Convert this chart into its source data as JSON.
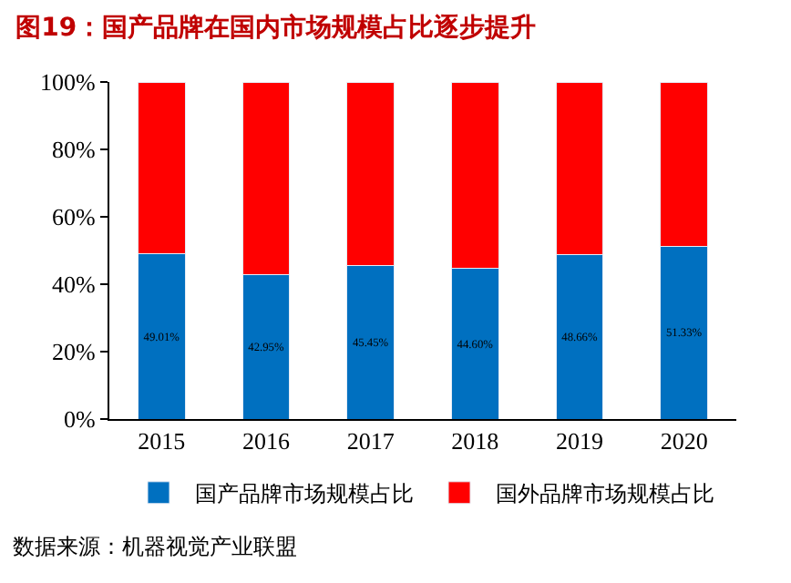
{
  "chart_data": {
    "type": "bar",
    "title": "图19：国产品牌在国内市场规模占比逐步提升",
    "categories": [
      "2015",
      "2016",
      "2017",
      "2018",
      "2019",
      "2020"
    ],
    "stacked": true,
    "series": [
      {
        "name": "国产品牌市场规模占比",
        "color": "#0070c0",
        "values": [
          49.01,
          42.95,
          45.45,
          44.6,
          48.66,
          51.33
        ],
        "value_labels": [
          "49.01%",
          "42.95%",
          "45.45%",
          "44.60%",
          "48.66%",
          "51.33%"
        ]
      },
      {
        "name": "国外品牌市场规模占比",
        "color": "#ff0000",
        "values": [
          50.99,
          57.05,
          54.55,
          55.4,
          51.34,
          48.67
        ]
      }
    ],
    "ylim": [
      0,
      100
    ],
    "yticks": [
      {
        "value": 0,
        "label": "0%"
      },
      {
        "value": 20,
        "label": "20%"
      },
      {
        "value": 40,
        "label": "40%"
      },
      {
        "value": 60,
        "label": "60%"
      },
      {
        "value": 80,
        "label": "80%"
      },
      {
        "value": 100,
        "label": "100%"
      }
    ],
    "legend": "bottom",
    "annotations": [
      "数据来源：机器视觉产业联盟"
    ]
  }
}
